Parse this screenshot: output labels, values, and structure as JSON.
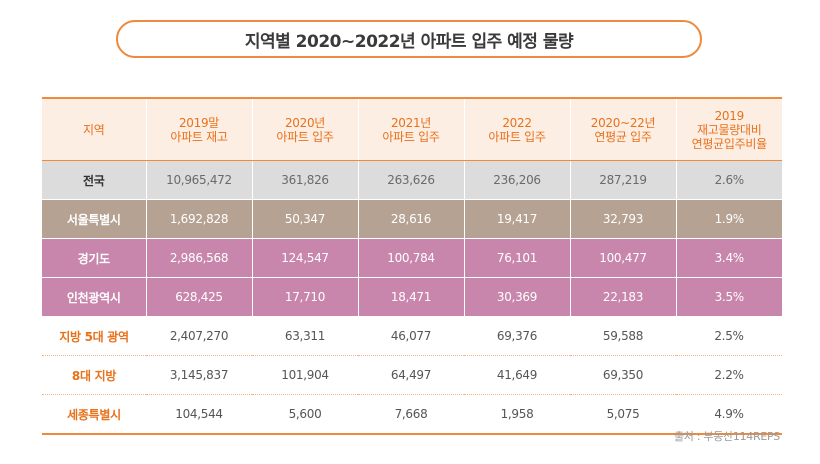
{
  "title": "지역별 2020~2022년 아파트 입주 예정 물량",
  "headers": [
    {
      "lines": [
        "지역"
      ]
    },
    {
      "lines": [
        "2019말",
        "아파트 재고"
      ]
    },
    {
      "lines": [
        "2020년",
        "아파트 입주"
      ]
    },
    {
      "lines": [
        "2021년",
        "아파트 입주"
      ]
    },
    {
      "lines": [
        "2022",
        "아파트 입주"
      ]
    },
    {
      "lines": [
        "2020~22년",
        "연평균 입주"
      ]
    },
    {
      "lines": [
        "2019",
        "재고물량대비",
        "연평균입주비율"
      ]
    }
  ],
  "rows": [
    {
      "style": "national",
      "cells": [
        "전국",
        "10,965,472",
        "361,826",
        "263,626",
        "236,206",
        "287,219",
        "2.6%"
      ]
    },
    {
      "style": "seoul",
      "cells": [
        "서울특별시",
        "1,692,828",
        "50,347",
        "28,616",
        "19,417",
        "32,793",
        "1.9%"
      ]
    },
    {
      "style": "gg",
      "cells": [
        "경기도",
        "2,986,568",
        "124,547",
        "100,784",
        "76,101",
        "100,477",
        "3.4%"
      ]
    },
    {
      "style": "ic",
      "cells": [
        "인천광역시",
        "628,425",
        "17,710",
        "18,471",
        "30,369",
        "22,183",
        "3.5%"
      ]
    },
    {
      "style": "plain",
      "cells": [
        "지방 5대 광역",
        "2,407,270",
        "63,311",
        "46,077",
        "69,376",
        "59,588",
        "2.5%"
      ]
    },
    {
      "style": "plain",
      "cells": [
        "8대 지방",
        "3,145,837",
        "101,904",
        "64,497",
        "41,649",
        "69,350",
        "2.2%"
      ]
    },
    {
      "style": "plain last",
      "cells": [
        "세종특별시",
        "104,544",
        "5,600",
        "7,668",
        "1,958",
        "5,075",
        "4.9%"
      ]
    }
  ],
  "source": "출처 : 부동산114REPS",
  "colors": {
    "accent": "#ef8a3c",
    "header_bg": "#fdeee3",
    "national": "#dcdcdc",
    "seoul": "#b6a292",
    "capital": "#c986ac"
  }
}
